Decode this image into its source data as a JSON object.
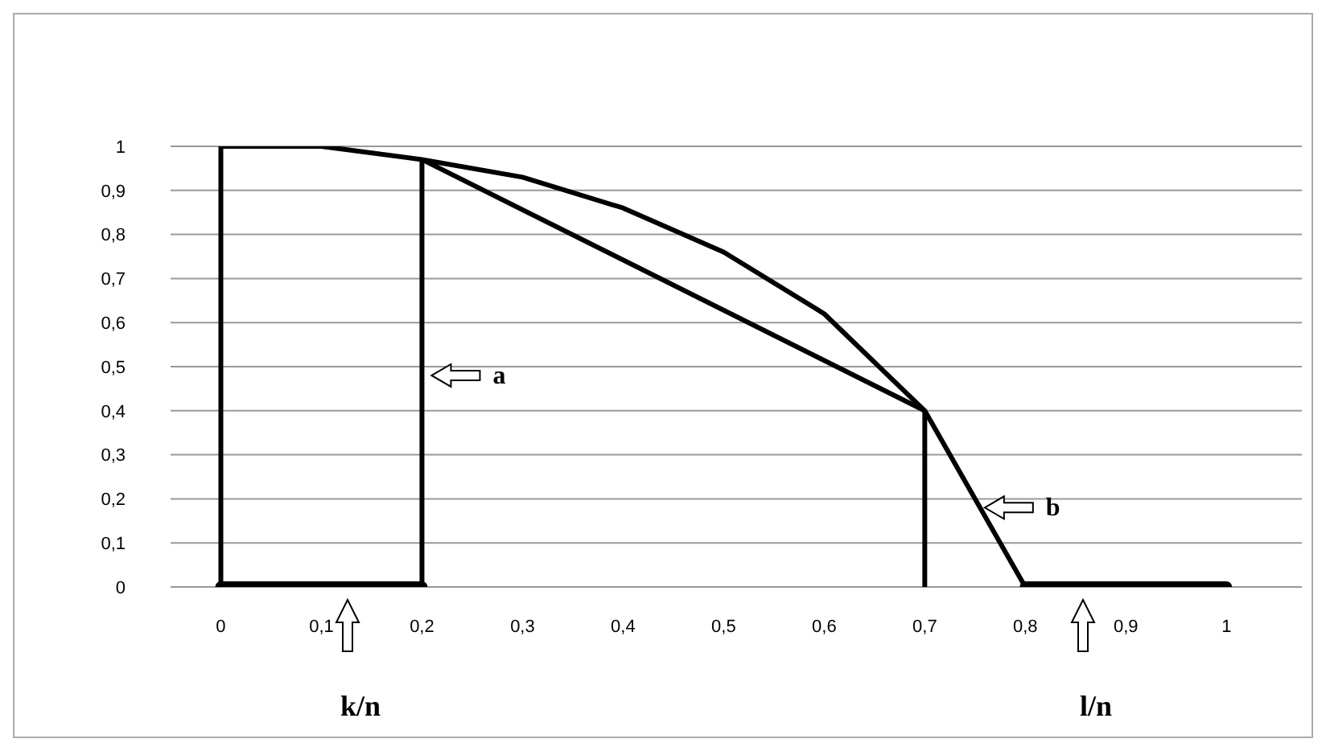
{
  "chart_data": {
    "type": "line",
    "xlim": [
      -0.05,
      1.075
    ],
    "xticks": [
      0,
      {
        "value": 0.1,
        "label": "0,1"
      },
      {
        "value": 0.2,
        "label": "0,2"
      },
      {
        "value": 0.3,
        "label": "0,3"
      },
      {
        "value": 0.4,
        "label": "0,4"
      },
      {
        "value": 0.5,
        "label": "0,5"
      },
      {
        "value": 0.6,
        "label": "0,6"
      },
      {
        "value": 0.7,
        "label": "0,7"
      },
      {
        "value": 0.8,
        "label": "0,8"
      },
      {
        "value": 0.9,
        "label": "0,9"
      },
      1
    ],
    "ylim": [
      0,
      1
    ],
    "yticks": [
      0,
      {
        "value": 0.1,
        "label": "0,1"
      },
      {
        "value": 0.2,
        "label": "0,2"
      },
      {
        "value": 0.3,
        "label": "0,3"
      },
      {
        "value": 0.4,
        "label": "0,4"
      },
      {
        "value": 0.5,
        "label": "0,5"
      },
      {
        "value": 0.6,
        "label": "0,6"
      },
      {
        "value": 0.7,
        "label": "0,7"
      },
      {
        "value": 0.8,
        "label": "0,8"
      },
      {
        "value": 0.9,
        "label": "0,9"
      },
      1
    ],
    "grid": "y",
    "marker": "none",
    "series": [
      {
        "color": "#000000",
        "x": [
          0,
          0.1,
          0.2,
          0.3,
          0.4,
          0.5,
          0.6,
          0.7,
          0.8
        ],
        "values": [
          1,
          1,
          0.97,
          0.93,
          0.86,
          0.76,
          0.62,
          0.4,
          0
        ]
      },
      {
        "color": "#000000",
        "x": [
          0.2,
          0.7
        ],
        "values": [
          0.97,
          0.4
        ]
      },
      {
        "color": "#000000",
        "x": [
          0,
          0
        ],
        "values": [
          0,
          1
        ]
      },
      {
        "color": "#000000",
        "x": [
          0.2,
          0.2
        ],
        "values": [
          0,
          0.97
        ]
      },
      {
        "color": "#000000",
        "x": [
          0.7,
          0.7
        ],
        "values": [
          0,
          0.4
        ]
      },
      {
        "color": "#000000",
        "x": [
          0,
          0.2
        ],
        "values": [
          0,
          0
        ]
      },
      {
        "color": "#000000",
        "x": [
          0.8,
          1
        ],
        "values": [
          0,
          0
        ]
      }
    ],
    "annotations": [
      {
        "text": "a",
        "x": 0.2,
        "y": 0.48
      },
      {
        "text": "b",
        "x": 0.75,
        "y": 0.18
      },
      "k/n",
      "l/n"
    ]
  }
}
